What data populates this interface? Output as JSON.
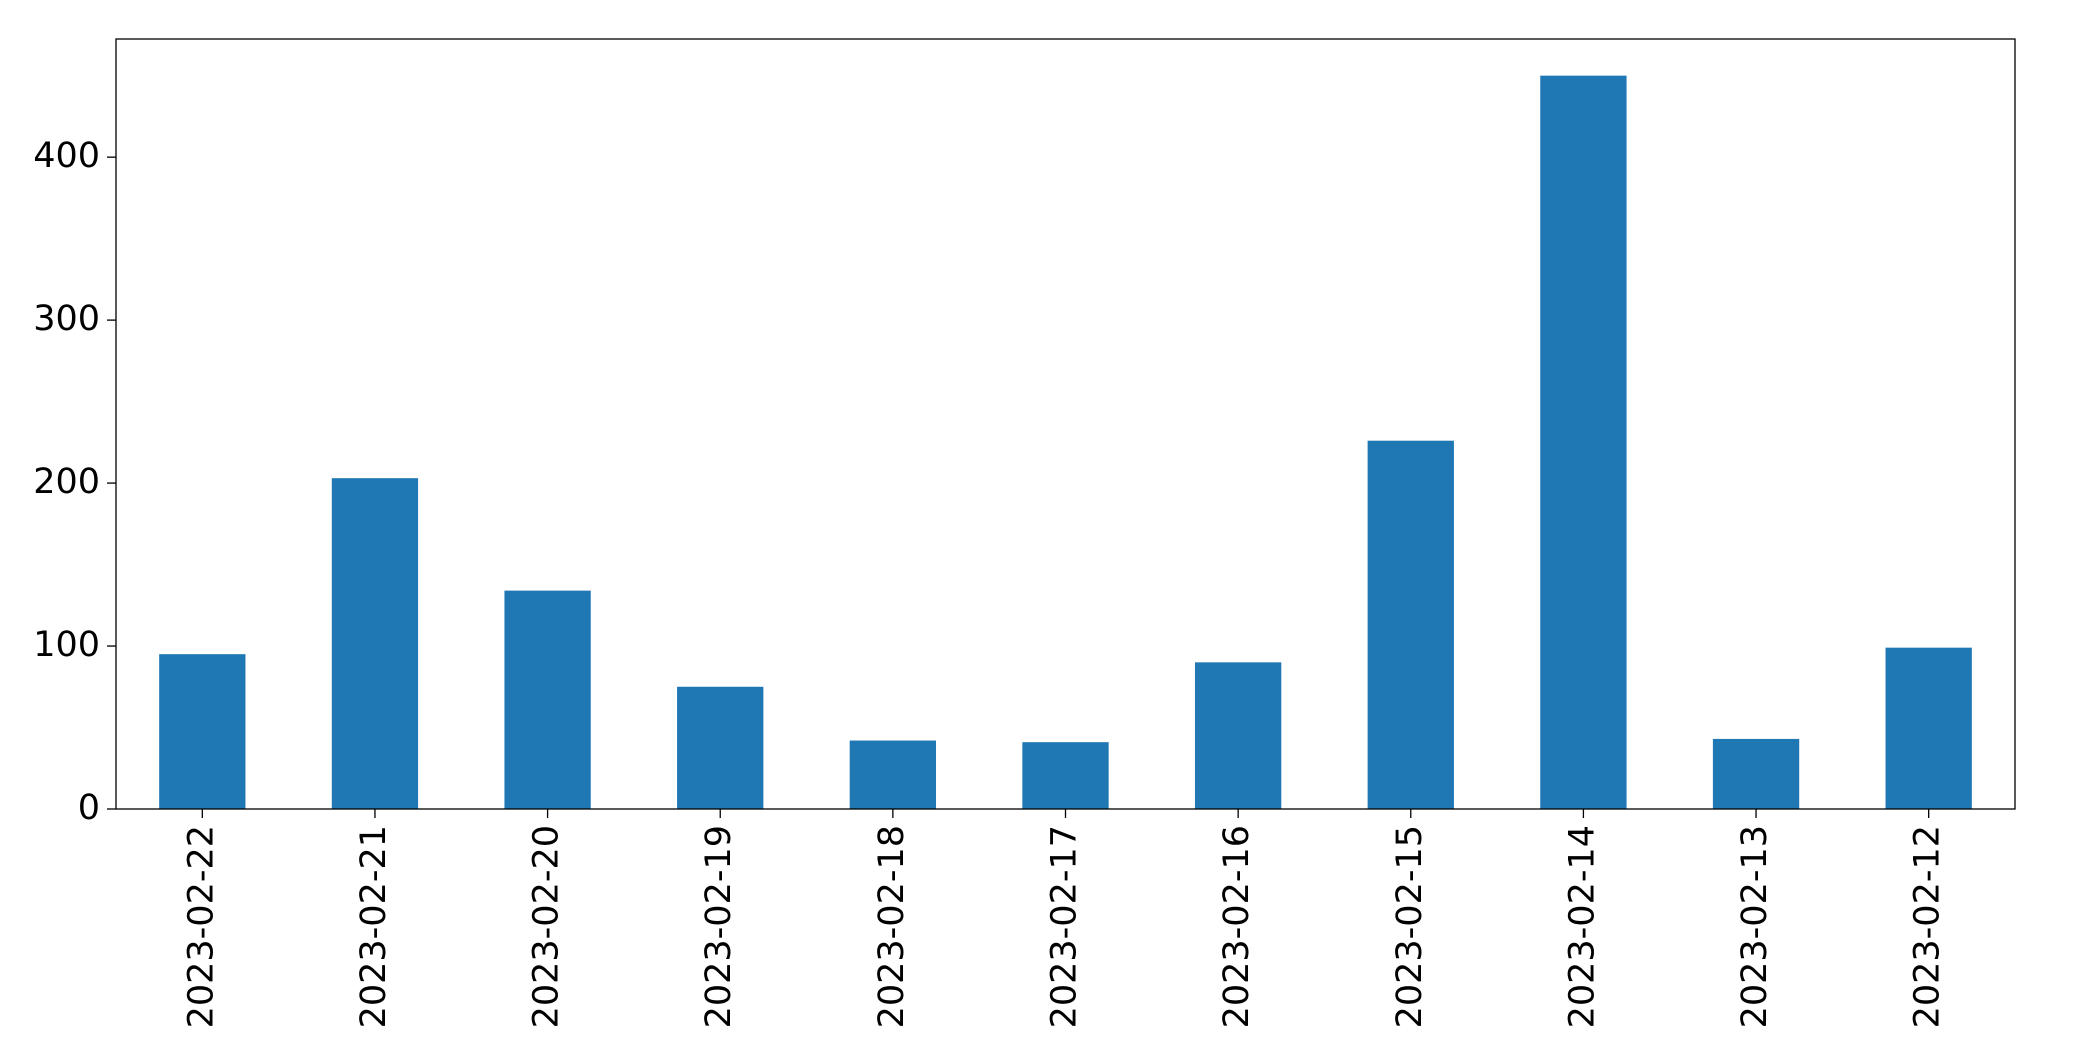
{
  "chart_data": {
    "type": "bar",
    "categories": [
      "2023-02-22",
      "2023-02-21",
      "2023-02-20",
      "2023-02-19",
      "2023-02-18",
      "2023-02-17",
      "2023-02-16",
      "2023-02-15",
      "2023-02-14",
      "2023-02-13",
      "2023-02-12"
    ],
    "values": [
      95,
      203,
      134,
      75,
      42,
      41,
      90,
      226,
      450,
      43,
      99
    ],
    "color": "#1f77b4",
    "ylim": [
      0,
      472.5
    ],
    "yticks": [
      0,
      100,
      200,
      300,
      400
    ],
    "grid": false
  }
}
